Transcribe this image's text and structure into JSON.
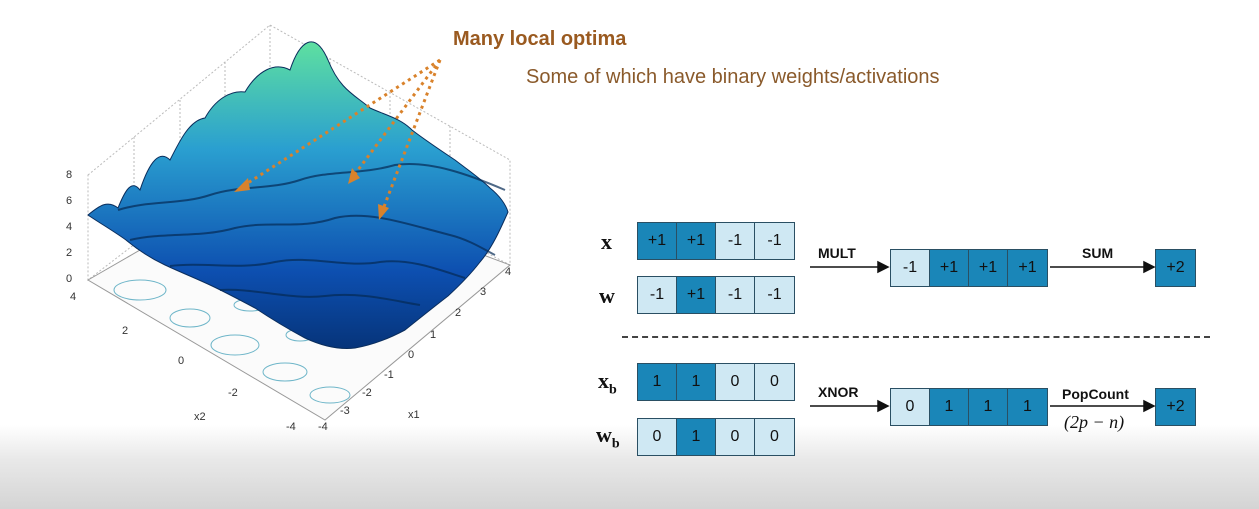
{
  "slide": {
    "title": "Many local optima",
    "subtitle": "Some of which have binary weights/activations"
  },
  "plot": {
    "z_ticks": [
      "0",
      "2",
      "4",
      "6",
      "8"
    ],
    "x1_ticks": [
      "-4",
      "-3",
      "-2",
      "-1",
      "0",
      "1",
      "2",
      "3",
      "4"
    ],
    "x2_ticks": [
      "4",
      "2",
      "0",
      "-2",
      "-4"
    ],
    "x1_label": "x1",
    "x2_label": "x2"
  },
  "real_row": {
    "x_label": "x",
    "w_label": "w",
    "x_values": [
      "+1",
      "+1",
      "-1",
      "-1"
    ],
    "w_values": [
      "-1",
      "+1",
      "-1",
      "-1"
    ],
    "op_label": "MULT",
    "product": [
      "-1",
      "+1",
      "+1",
      "+1"
    ],
    "sum_label": "SUM",
    "result": "+2"
  },
  "binary_row": {
    "x_label": "x",
    "x_sub": "b",
    "w_label": "w",
    "w_sub": "b",
    "x_values": [
      "1",
      "1",
      "0",
      "0"
    ],
    "w_values": [
      "0",
      "1",
      "0",
      "0"
    ],
    "op_label": "XNOR",
    "product": [
      "0",
      "1",
      "1",
      "1"
    ],
    "count_label": "PopCount",
    "formula": "(2p − n)",
    "result": "+2"
  },
  "colors": {
    "dark_cell": "#1a86b8",
    "light_cell": "#cfe8f3",
    "title": "#9a5a20",
    "arrow": "#d9822b"
  }
}
